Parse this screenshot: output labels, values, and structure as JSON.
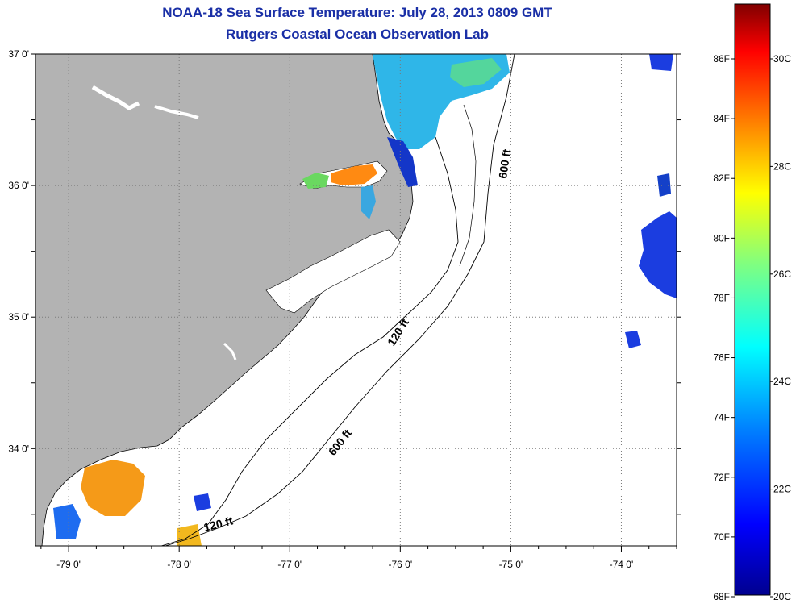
{
  "title": {
    "line1": "NOAA-18 Sea Surface Temperature:  July 28, 2013 0809 GMT",
    "line2": "Rutgers Coastal Ocean Observation Lab"
  },
  "map": {
    "lon_range": [
      -79.3,
      -73.5
    ],
    "lat_range": [
      33.26,
      37.0
    ],
    "lon_ticks": [
      {
        "value": -79,
        "label": "-79 0'"
      },
      {
        "value": -78,
        "label": "-78 0'"
      },
      {
        "value": -77,
        "label": "-77 0'"
      },
      {
        "value": -76,
        "label": "-76 0'"
      },
      {
        "value": -75,
        "label": "-75 0'"
      },
      {
        "value": -74,
        "label": "-74 0'"
      }
    ],
    "lat_ticks": [
      {
        "value": 37,
        "label": "37 0'"
      },
      {
        "value": 36,
        "label": "36 0'"
      },
      {
        "value": 35,
        "label": "35 0'"
      },
      {
        "value": 34,
        "label": "34 0'"
      }
    ],
    "grid": true,
    "colors": {
      "land": "#b3b3b3",
      "ocean_nodata": "#ffffff",
      "frame": "#000000",
      "grid": "#7a7a7a"
    },
    "contour_labels": [
      {
        "text": "600 ft"
      },
      {
        "text": "120 ft"
      },
      {
        "text": "600 ft"
      },
      {
        "text": "120 ft"
      }
    ]
  },
  "colorbar": {
    "fahrenheit_labels": [
      "86F",
      "84F",
      "82F",
      "80F",
      "78F",
      "76F",
      "74F",
      "72F",
      "70F",
      "68F"
    ],
    "celsius_labels": [
      "30C",
      "28C",
      "26C",
      "24C",
      "22C",
      "20C"
    ],
    "colormap": [
      "#00008f",
      "#0000ff",
      "#0080ff",
      "#00ffff",
      "#80ff80",
      "#ffff00",
      "#ff8000",
      "#ff0000",
      "#800000"
    ]
  }
}
